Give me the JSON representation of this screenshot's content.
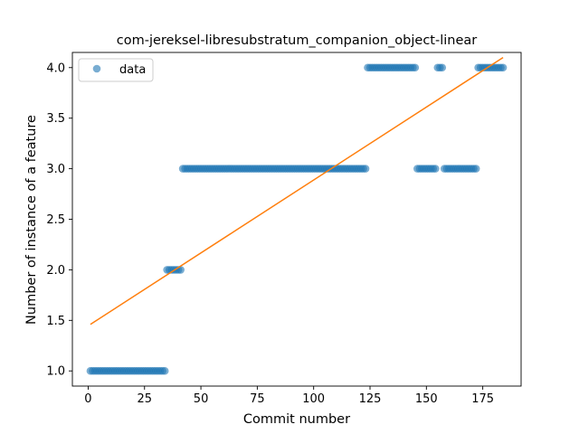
{
  "chart_data": {
    "type": "scatter",
    "title": "com-jereksel-libresubstratum_companion_object-linear",
    "xlabel": "Commit number",
    "ylabel": "Number of instance of a feature",
    "xlim": [
      -7,
      192
    ],
    "ylim": [
      0.85,
      4.15
    ],
    "xticks": [
      0,
      25,
      50,
      75,
      100,
      125,
      150,
      175
    ],
    "yticks": [
      1.0,
      1.5,
      2.0,
      2.5,
      3.0,
      3.5,
      4.0
    ],
    "ytick_labels": [
      "1.0",
      "1.5",
      "2.0",
      "2.5",
      "3.0",
      "3.5",
      "4.0"
    ],
    "grid": false,
    "legend": {
      "position": "top-left",
      "entries": [
        "data"
      ]
    },
    "series": [
      {
        "name": "data",
        "kind": "scatter",
        "color": "#1f77b4",
        "alpha": 0.6,
        "segments": [
          {
            "x_start": 1,
            "x_end": 34,
            "y": 1.0
          },
          {
            "x_start": 35,
            "x_end": 41,
            "y": 2.0
          },
          {
            "x_start": 42,
            "x_end": 123,
            "y": 3.0
          },
          {
            "x_start": 124,
            "x_end": 145,
            "y": 4.0
          },
          {
            "x_start": 146,
            "x_end": 154,
            "y": 3.0
          },
          {
            "x_start": 155,
            "x_end": 157,
            "y": 4.0
          },
          {
            "x_start": 158,
            "x_end": 172,
            "y": 3.0
          },
          {
            "x_start": 173,
            "x_end": 184,
            "y": 4.0
          }
        ]
      },
      {
        "name": "",
        "kind": "line",
        "color": "#ff7f0e",
        "x": [
          1,
          184
        ],
        "y": [
          1.46,
          4.1
        ]
      }
    ]
  }
}
